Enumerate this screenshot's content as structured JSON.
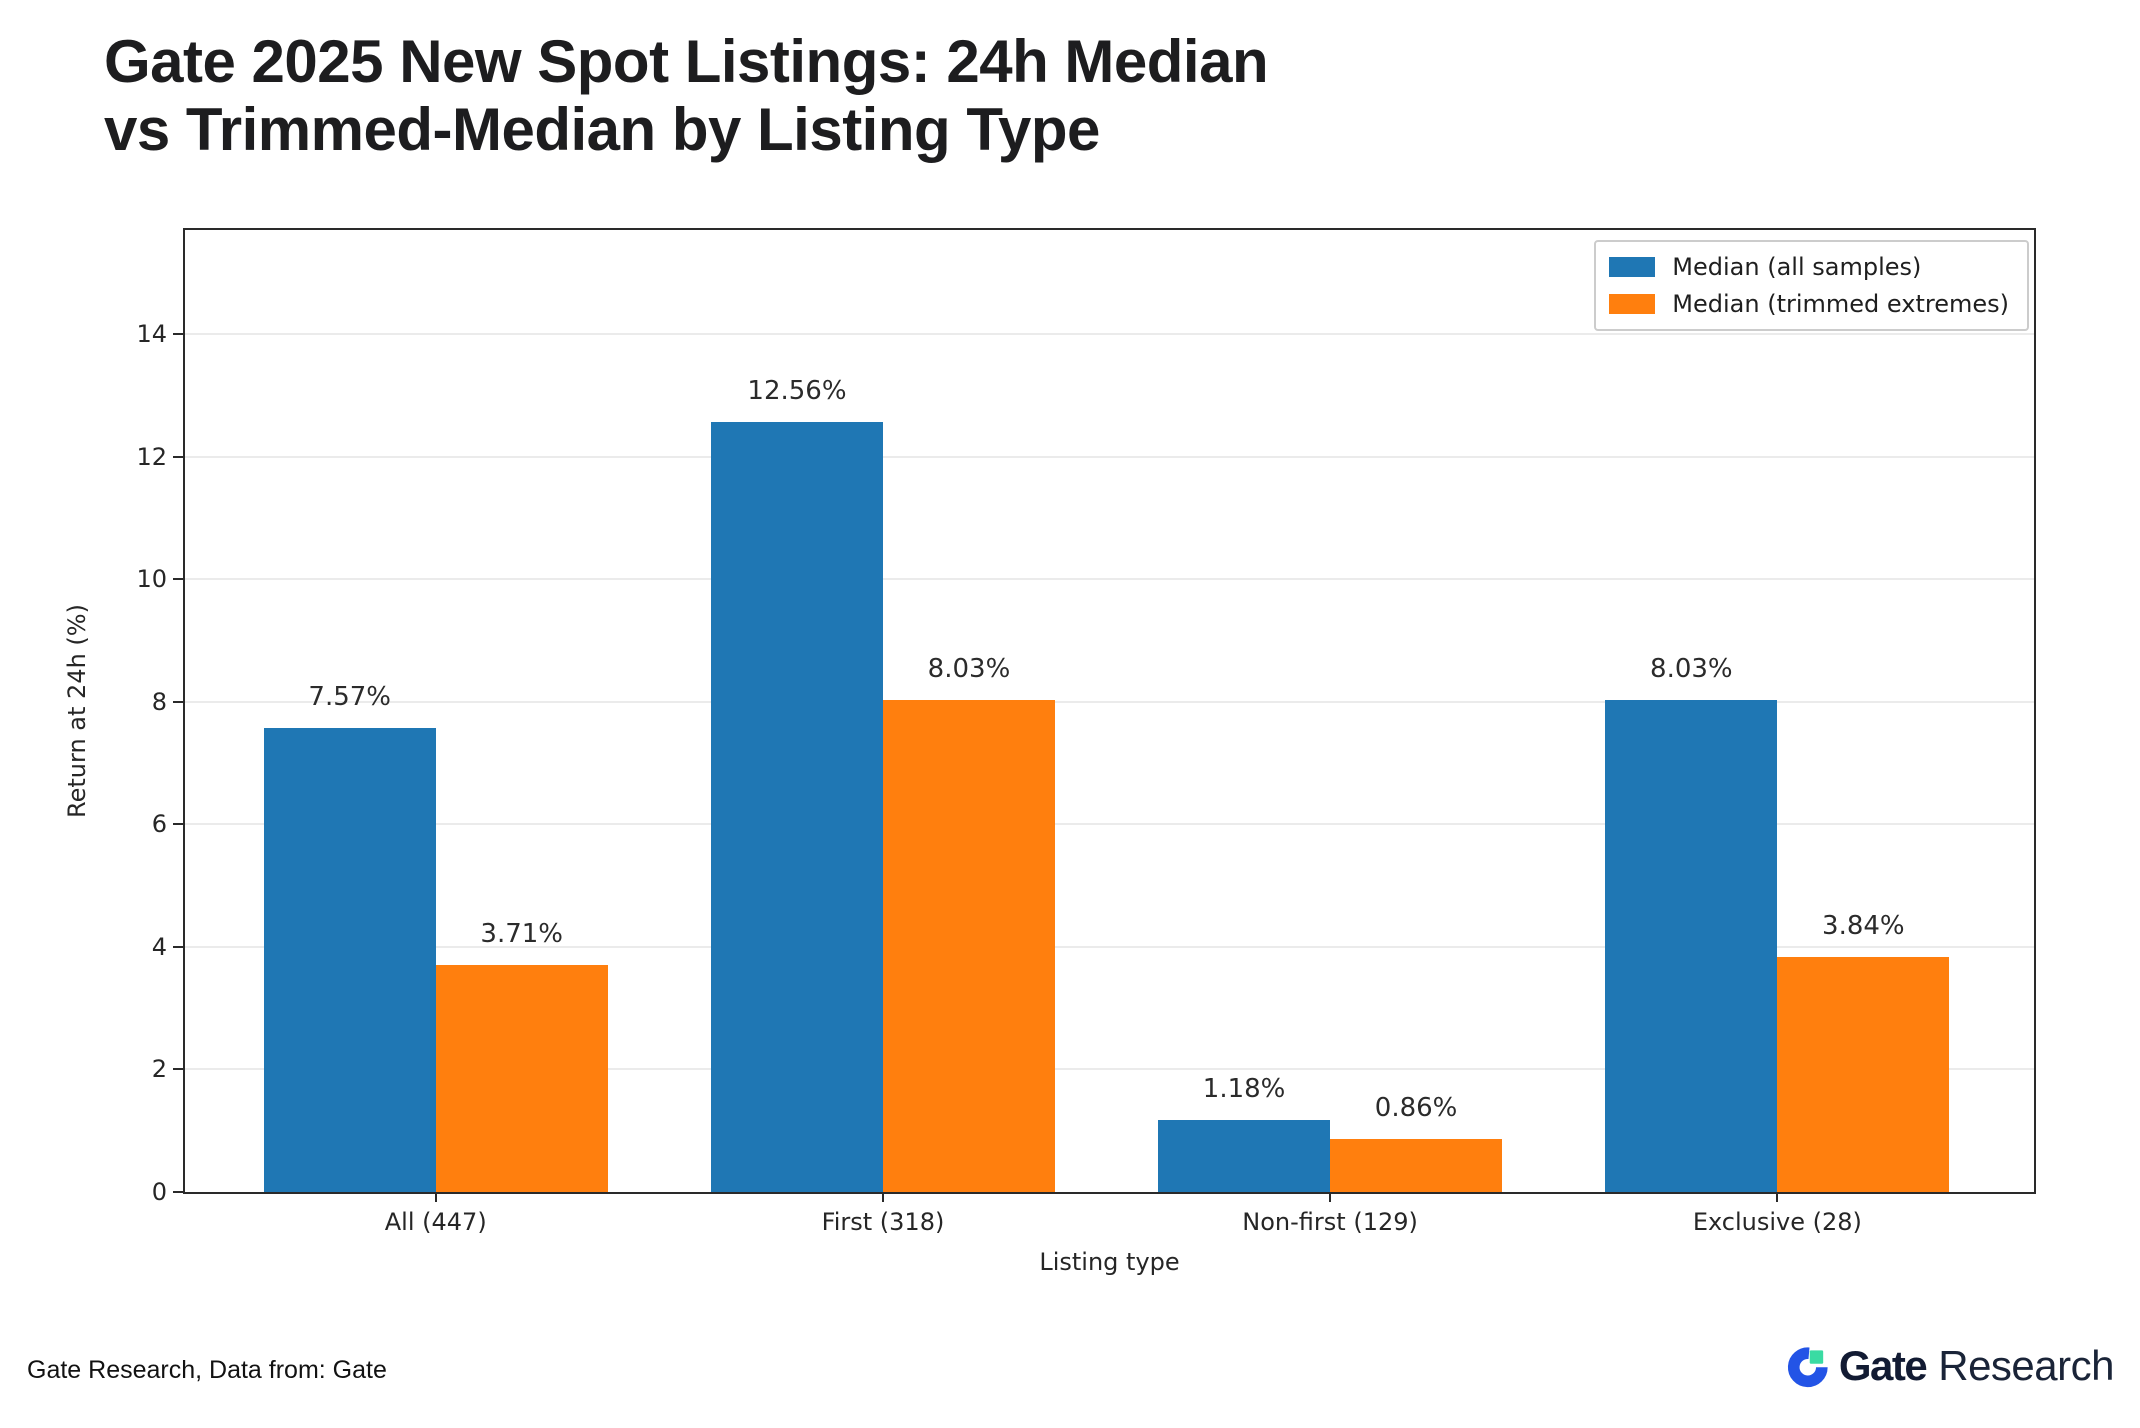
{
  "header": {
    "title_line1": "Gate 2025 New Spot Listings: 24h Median",
    "title_line2": "vs Trimmed-Median by Listing Type"
  },
  "chart_data": {
    "type": "bar",
    "title": "Gate 2025 New Spot Listings: 24h Median vs Trimmed-Median by Listing Type",
    "categories": [
      "All (447)",
      "First (318)",
      "Non-first (129)",
      "Exclusive (28)"
    ],
    "series": [
      {
        "name": "Median (all samples)",
        "color": "#1f77b4",
        "values": [
          7.57,
          12.56,
          1.18,
          8.03
        ]
      },
      {
        "name": "Median (trimmed extremes)",
        "color": "#ff7f0e",
        "values": [
          3.71,
          8.03,
          0.86,
          3.84
        ]
      }
    ],
    "value_label_suffix": "%",
    "value_label_decimals": 2,
    "xlabel": "Listing type",
    "ylabel": "Return at 24h (%)",
    "ylim": [
      0,
      15.7
    ],
    "yticks": [
      0,
      2,
      4,
      6,
      8,
      10,
      12,
      14
    ],
    "grid": true,
    "legend_position": "top-right",
    "grid_color": "#ebebeb",
    "frame_color": "#2a2a2a"
  },
  "footer": {
    "source_text": "Gate Research, Data from: Gate",
    "logo": {
      "brand": "Gate",
      "suffix": "Research",
      "icon": "gate-logo-icon",
      "icon_blue": "#2354e6",
      "icon_green": "#3adba3"
    }
  }
}
